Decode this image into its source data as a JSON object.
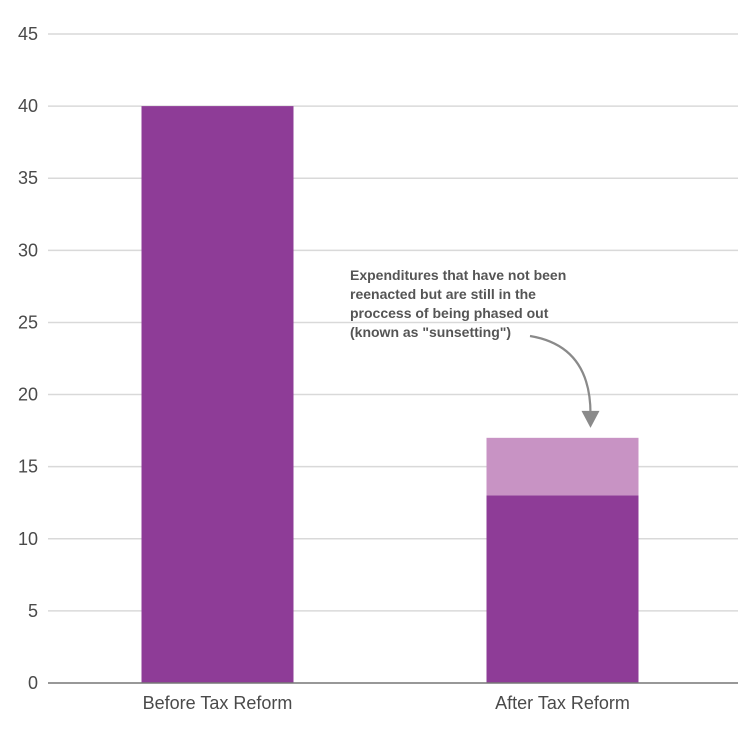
{
  "chart_data": {
    "type": "bar",
    "stacked": true,
    "categories": [
      "Before Tax Reform",
      "After Tax Reform"
    ],
    "series": [
      {
        "values": [
          40,
          13
        ],
        "color": "#8e3c97"
      },
      {
        "values": [
          0,
          4
        ],
        "color": "#c893c4"
      }
    ],
    "ylim": [
      0,
      45
    ],
    "yticks": [
      0,
      5,
      10,
      15,
      20,
      25,
      30,
      35,
      40,
      45
    ],
    "grid": true,
    "annotation": {
      "lines": [
        "Expenditures that have not been",
        "reenacted but are still in the",
        "proccess of being phased out",
        "(known as \"sunsetting\")"
      ],
      "target_category": "After Tax Reform",
      "arrow_color": "#8a8a8a"
    }
  }
}
